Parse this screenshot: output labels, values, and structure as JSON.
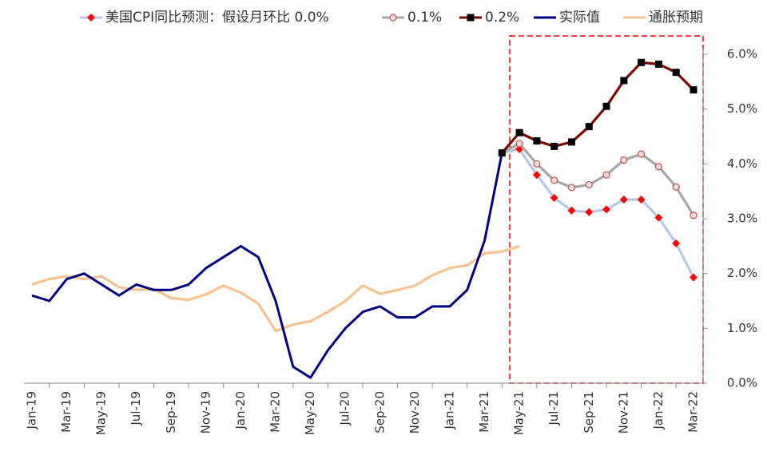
{
  "chart_data": {
    "type": "line",
    "categories": [
      "Jan-19",
      null,
      "Mar-19",
      null,
      "May-19",
      null,
      "Jul-19",
      null,
      "Sep-19",
      null,
      "Nov-19",
      null,
      "Jan-20",
      null,
      "Mar-20",
      null,
      "May-20",
      null,
      "Jul-20",
      null,
      "Sep-20",
      null,
      "Nov-20",
      null,
      "Jan-21",
      null,
      "Mar-21",
      null,
      "May-21",
      null,
      "Jul-21",
      null,
      "Sep-21",
      null,
      "Nov-21",
      null,
      "Jan-22",
      null,
      "Mar-22"
    ],
    "series": [
      {
        "name": "美国CPI同比预测：假设月环比 0.0%",
        "color": "#b4c7e7",
        "marker": "diamond",
        "marker_color": "#ff0000",
        "values": [
          null,
          null,
          null,
          null,
          null,
          null,
          null,
          null,
          null,
          null,
          null,
          null,
          null,
          null,
          null,
          null,
          null,
          null,
          null,
          null,
          null,
          null,
          null,
          null,
          null,
          null,
          null,
          4.2,
          4.27,
          3.8,
          3.38,
          3.15,
          3.12,
          3.17,
          3.35,
          3.35,
          3.02,
          2.55,
          1.93
        ]
      },
      {
        "name": "0.1%",
        "color": "#a6a6a6",
        "marker": "circle",
        "marker_color": "#c0504d",
        "values": [
          null,
          null,
          null,
          null,
          null,
          null,
          null,
          null,
          null,
          null,
          null,
          null,
          null,
          null,
          null,
          null,
          null,
          null,
          null,
          null,
          null,
          null,
          null,
          null,
          null,
          null,
          null,
          4.2,
          4.37,
          4.0,
          3.7,
          3.57,
          3.62,
          3.8,
          4.07,
          4.18,
          3.95,
          3.58,
          3.06
        ]
      },
      {
        "name": "0.2%",
        "color": "#7f0000",
        "marker": "square",
        "marker_color": "#000000",
        "values": [
          null,
          null,
          null,
          null,
          null,
          null,
          null,
          null,
          null,
          null,
          null,
          null,
          null,
          null,
          null,
          null,
          null,
          null,
          null,
          null,
          null,
          null,
          null,
          null,
          null,
          null,
          null,
          4.2,
          4.57,
          4.42,
          4.32,
          4.4,
          4.68,
          5.05,
          5.52,
          5.85,
          5.82,
          5.67,
          5.35
        ]
      },
      {
        "name": "实际值",
        "color": "#000080",
        "values": [
          1.6,
          1.5,
          1.9,
          2.0,
          1.8,
          1.6,
          1.8,
          1.7,
          1.7,
          1.8,
          2.1,
          2.3,
          2.5,
          2.3,
          1.5,
          0.3,
          0.1,
          0.6,
          1.0,
          1.3,
          1.4,
          1.2,
          1.2,
          1.4,
          1.4,
          1.7,
          2.6,
          4.2,
          null,
          null,
          null,
          null,
          null,
          null,
          null,
          null,
          null,
          null,
          null
        ]
      },
      {
        "name": "通胀预期",
        "color": "#f8c290",
        "values": [
          1.8,
          1.9,
          1.95,
          1.9,
          1.95,
          1.75,
          1.7,
          1.72,
          1.55,
          1.52,
          1.62,
          1.78,
          1.65,
          1.45,
          0.95,
          1.07,
          1.13,
          1.3,
          1.5,
          1.78,
          1.63,
          1.7,
          1.78,
          1.97,
          2.1,
          2.15,
          2.37,
          2.4,
          2.5,
          null,
          null,
          null,
          null,
          null,
          null,
          null,
          null,
          null,
          null
        ]
      }
    ],
    "ylim": [
      0,
      6
    ],
    "yticks": [
      {
        "value": 0,
        "label": "0.0%"
      },
      {
        "value": 1,
        "label": "1.0%"
      },
      {
        "value": 2,
        "label": "2.0%"
      },
      {
        "value": 3,
        "label": "3.0%"
      },
      {
        "value": 4,
        "label": "4.0%"
      },
      {
        "value": 5,
        "label": "5.0%"
      },
      {
        "value": 6,
        "label": "6.0%"
      }
    ],
    "y_axis_side": "right"
  }
}
